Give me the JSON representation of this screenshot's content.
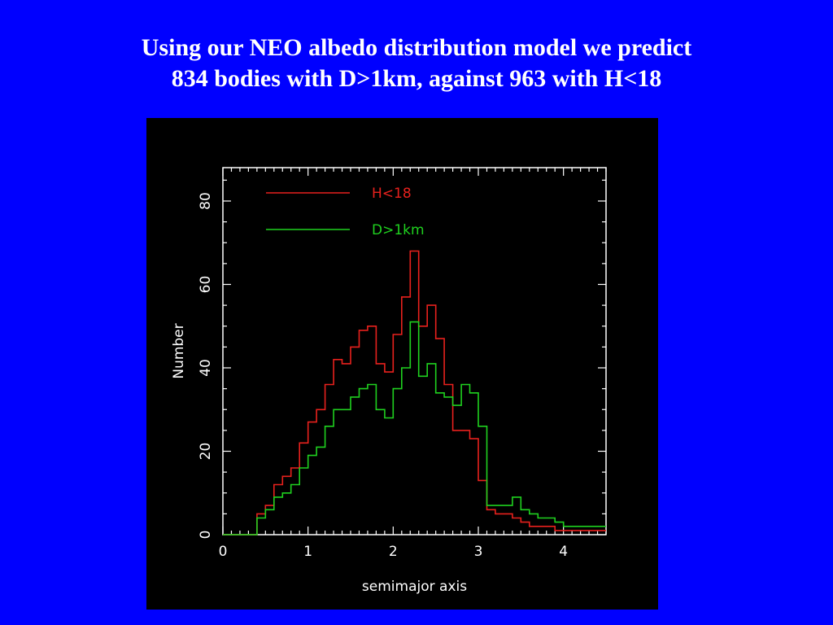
{
  "slide": {
    "title_line1": "Using our NEO albedo distribution model we predict",
    "title_line2": "834 bodies with D>1km, against 963 with H<18"
  },
  "colors": {
    "background": "#0000ff",
    "plot_background": "#000000",
    "axes": "#ffffff",
    "series_h18": "#e8211d",
    "series_d1km": "#1fd11f"
  },
  "chart_data": {
    "type": "line",
    "style": "step histogram",
    "xlabel": "semimajor axis",
    "ylabel": "Number",
    "xlim": [
      0,
      4.5
    ],
    "ylim": [
      0,
      88
    ],
    "xticks": [
      0,
      1,
      2,
      3,
      4
    ],
    "yticks": [
      0,
      20,
      40,
      60,
      80
    ],
    "grid": false,
    "legend_position": "top-left",
    "bin_edges": [
      0,
      0.1,
      0.2,
      0.3,
      0.4,
      0.5,
      0.6,
      0.7,
      0.8,
      0.9,
      1.0,
      1.1,
      1.2,
      1.3,
      1.4,
      1.5,
      1.6,
      1.7,
      1.8,
      1.9,
      2.0,
      2.1,
      2.2,
      2.3,
      2.4,
      2.5,
      2.6,
      2.7,
      2.8,
      2.9,
      3.0,
      3.1,
      3.2,
      3.3,
      3.4,
      3.5,
      3.6,
      3.7,
      3.8,
      3.9,
      4.0,
      4.1,
      4.2,
      4.3,
      4.4,
      4.5
    ],
    "series": [
      {
        "name": "H<18",
        "color": "#e8211d",
        "values": [
          0,
          0,
          0,
          0,
          5,
          7,
          12,
          14,
          16,
          22,
          27,
          30,
          36,
          42,
          41,
          45,
          49,
          50,
          41,
          39,
          48,
          57,
          68,
          50,
          55,
          47,
          36,
          25,
          25,
          23,
          13,
          6,
          5,
          5,
          4,
          3,
          2,
          2,
          2,
          1,
          1,
          1,
          1,
          1,
          1
        ]
      },
      {
        "name": "D>1km",
        "color": "#1fd11f",
        "values": [
          0,
          0,
          0,
          0,
          4,
          6,
          9,
          10,
          12,
          16,
          19,
          21,
          26,
          30,
          30,
          33,
          35,
          36,
          30,
          28,
          35,
          40,
          51,
          38,
          41,
          34,
          33,
          31,
          36,
          34,
          26,
          7,
          7,
          7,
          9,
          6,
          5,
          4,
          4,
          3,
          2,
          2,
          2,
          2,
          2
        ]
      }
    ]
  }
}
